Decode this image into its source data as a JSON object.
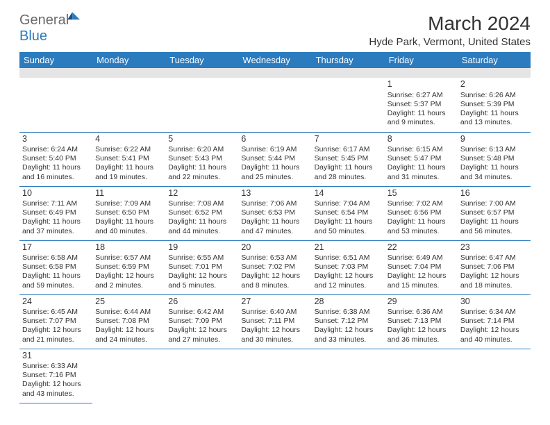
{
  "logo": {
    "word1": "General",
    "word2": "Blue"
  },
  "title": "March 2024",
  "location": "Hyde Park, Vermont, United States",
  "colors": {
    "header_bg": "#2b7bbf",
    "header_fg": "#ffffff",
    "rule": "#2b7bbf",
    "text": "#333333"
  },
  "weekdays": [
    "Sunday",
    "Monday",
    "Tuesday",
    "Wednesday",
    "Thursday",
    "Friday",
    "Saturday"
  ],
  "grid": [
    [
      null,
      null,
      null,
      null,
      null,
      {
        "n": "1",
        "sr": "Sunrise: 6:27 AM",
        "ss": "Sunset: 5:37 PM",
        "d1": "Daylight: 11 hours",
        "d2": "and 9 minutes."
      },
      {
        "n": "2",
        "sr": "Sunrise: 6:26 AM",
        "ss": "Sunset: 5:39 PM",
        "d1": "Daylight: 11 hours",
        "d2": "and 13 minutes."
      }
    ],
    [
      {
        "n": "3",
        "sr": "Sunrise: 6:24 AM",
        "ss": "Sunset: 5:40 PM",
        "d1": "Daylight: 11 hours",
        "d2": "and 16 minutes."
      },
      {
        "n": "4",
        "sr": "Sunrise: 6:22 AM",
        "ss": "Sunset: 5:41 PM",
        "d1": "Daylight: 11 hours",
        "d2": "and 19 minutes."
      },
      {
        "n": "5",
        "sr": "Sunrise: 6:20 AM",
        "ss": "Sunset: 5:43 PM",
        "d1": "Daylight: 11 hours",
        "d2": "and 22 minutes."
      },
      {
        "n": "6",
        "sr": "Sunrise: 6:19 AM",
        "ss": "Sunset: 5:44 PM",
        "d1": "Daylight: 11 hours",
        "d2": "and 25 minutes."
      },
      {
        "n": "7",
        "sr": "Sunrise: 6:17 AM",
        "ss": "Sunset: 5:45 PM",
        "d1": "Daylight: 11 hours",
        "d2": "and 28 minutes."
      },
      {
        "n": "8",
        "sr": "Sunrise: 6:15 AM",
        "ss": "Sunset: 5:47 PM",
        "d1": "Daylight: 11 hours",
        "d2": "and 31 minutes."
      },
      {
        "n": "9",
        "sr": "Sunrise: 6:13 AM",
        "ss": "Sunset: 5:48 PM",
        "d1": "Daylight: 11 hours",
        "d2": "and 34 minutes."
      }
    ],
    [
      {
        "n": "10",
        "sr": "Sunrise: 7:11 AM",
        "ss": "Sunset: 6:49 PM",
        "d1": "Daylight: 11 hours",
        "d2": "and 37 minutes."
      },
      {
        "n": "11",
        "sr": "Sunrise: 7:09 AM",
        "ss": "Sunset: 6:50 PM",
        "d1": "Daylight: 11 hours",
        "d2": "and 40 minutes."
      },
      {
        "n": "12",
        "sr": "Sunrise: 7:08 AM",
        "ss": "Sunset: 6:52 PM",
        "d1": "Daylight: 11 hours",
        "d2": "and 44 minutes."
      },
      {
        "n": "13",
        "sr": "Sunrise: 7:06 AM",
        "ss": "Sunset: 6:53 PM",
        "d1": "Daylight: 11 hours",
        "d2": "and 47 minutes."
      },
      {
        "n": "14",
        "sr": "Sunrise: 7:04 AM",
        "ss": "Sunset: 6:54 PM",
        "d1": "Daylight: 11 hours",
        "d2": "and 50 minutes."
      },
      {
        "n": "15",
        "sr": "Sunrise: 7:02 AM",
        "ss": "Sunset: 6:56 PM",
        "d1": "Daylight: 11 hours",
        "d2": "and 53 minutes."
      },
      {
        "n": "16",
        "sr": "Sunrise: 7:00 AM",
        "ss": "Sunset: 6:57 PM",
        "d1": "Daylight: 11 hours",
        "d2": "and 56 minutes."
      }
    ],
    [
      {
        "n": "17",
        "sr": "Sunrise: 6:58 AM",
        "ss": "Sunset: 6:58 PM",
        "d1": "Daylight: 11 hours",
        "d2": "and 59 minutes."
      },
      {
        "n": "18",
        "sr": "Sunrise: 6:57 AM",
        "ss": "Sunset: 6:59 PM",
        "d1": "Daylight: 12 hours",
        "d2": "and 2 minutes."
      },
      {
        "n": "19",
        "sr": "Sunrise: 6:55 AM",
        "ss": "Sunset: 7:01 PM",
        "d1": "Daylight: 12 hours",
        "d2": "and 5 minutes."
      },
      {
        "n": "20",
        "sr": "Sunrise: 6:53 AM",
        "ss": "Sunset: 7:02 PM",
        "d1": "Daylight: 12 hours",
        "d2": "and 8 minutes."
      },
      {
        "n": "21",
        "sr": "Sunrise: 6:51 AM",
        "ss": "Sunset: 7:03 PM",
        "d1": "Daylight: 12 hours",
        "d2": "and 12 minutes."
      },
      {
        "n": "22",
        "sr": "Sunrise: 6:49 AM",
        "ss": "Sunset: 7:04 PM",
        "d1": "Daylight: 12 hours",
        "d2": "and 15 minutes."
      },
      {
        "n": "23",
        "sr": "Sunrise: 6:47 AM",
        "ss": "Sunset: 7:06 PM",
        "d1": "Daylight: 12 hours",
        "d2": "and 18 minutes."
      }
    ],
    [
      {
        "n": "24",
        "sr": "Sunrise: 6:45 AM",
        "ss": "Sunset: 7:07 PM",
        "d1": "Daylight: 12 hours",
        "d2": "and 21 minutes."
      },
      {
        "n": "25",
        "sr": "Sunrise: 6:44 AM",
        "ss": "Sunset: 7:08 PM",
        "d1": "Daylight: 12 hours",
        "d2": "and 24 minutes."
      },
      {
        "n": "26",
        "sr": "Sunrise: 6:42 AM",
        "ss": "Sunset: 7:09 PM",
        "d1": "Daylight: 12 hours",
        "d2": "and 27 minutes."
      },
      {
        "n": "27",
        "sr": "Sunrise: 6:40 AM",
        "ss": "Sunset: 7:11 PM",
        "d1": "Daylight: 12 hours",
        "d2": "and 30 minutes."
      },
      {
        "n": "28",
        "sr": "Sunrise: 6:38 AM",
        "ss": "Sunset: 7:12 PM",
        "d1": "Daylight: 12 hours",
        "d2": "and 33 minutes."
      },
      {
        "n": "29",
        "sr": "Sunrise: 6:36 AM",
        "ss": "Sunset: 7:13 PM",
        "d1": "Daylight: 12 hours",
        "d2": "and 36 minutes."
      },
      {
        "n": "30",
        "sr": "Sunrise: 6:34 AM",
        "ss": "Sunset: 7:14 PM",
        "d1": "Daylight: 12 hours",
        "d2": "and 40 minutes."
      }
    ],
    [
      {
        "n": "31",
        "sr": "Sunrise: 6:33 AM",
        "ss": "Sunset: 7:16 PM",
        "d1": "Daylight: 12 hours",
        "d2": "and 43 minutes."
      },
      null,
      null,
      null,
      null,
      null,
      null
    ]
  ]
}
